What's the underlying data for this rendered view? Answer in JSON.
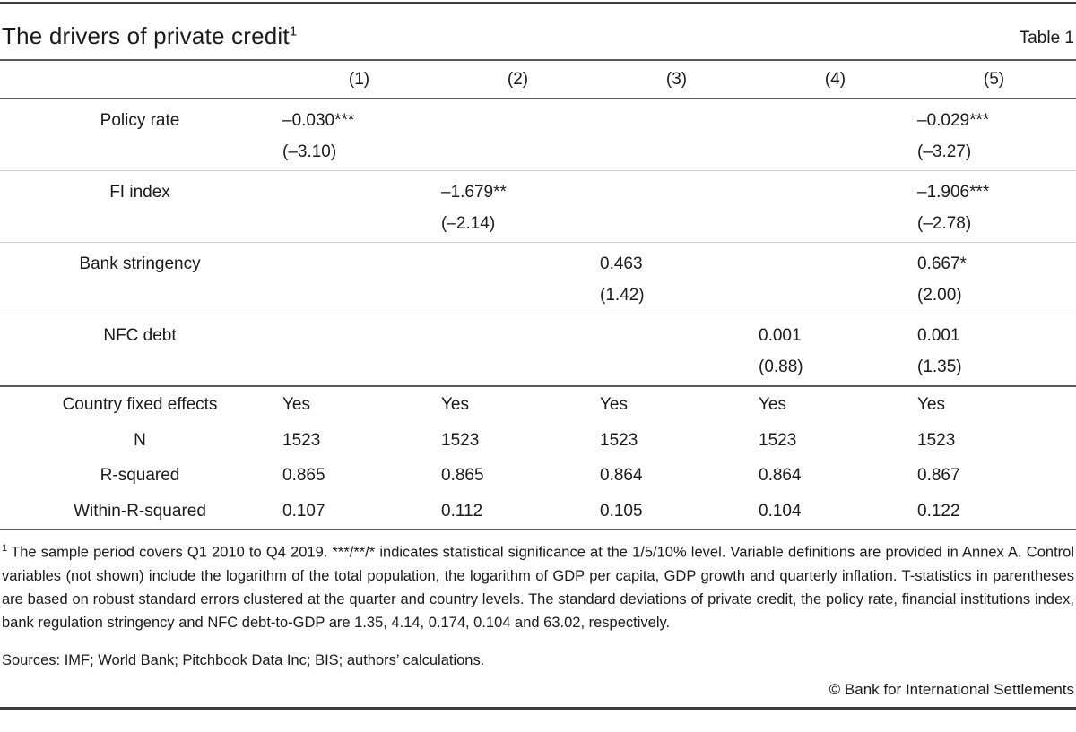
{
  "table": {
    "title": "The drivers of private credit",
    "title_footnote_marker": "1",
    "table_label": "Table 1",
    "column_headers": [
      "(1)",
      "(2)",
      "(3)",
      "(4)",
      "(5)"
    ],
    "variables": [
      {
        "label": "Policy rate",
        "coefs": [
          "–0.030***",
          "",
          "",
          "",
          "–0.029***"
        ],
        "tstats": [
          "(–3.10)",
          "",
          "",
          "",
          "(–3.27)"
        ]
      },
      {
        "label": "FI index",
        "coefs": [
          "",
          "–1.679**",
          "",
          "",
          "–1.906***"
        ],
        "tstats": [
          "",
          "(–2.14)",
          "",
          "",
          "(–2.78)"
        ]
      },
      {
        "label": "Bank stringency",
        "coefs": [
          "",
          "",
          "0.463",
          "",
          "0.667*"
        ],
        "tstats": [
          "",
          "",
          "(1.42)",
          "",
          "(2.00)"
        ]
      },
      {
        "label": "NFC debt",
        "coefs": [
          "",
          "",
          "",
          "0.001",
          "0.001"
        ],
        "tstats": [
          "",
          "",
          "",
          "(0.88)",
          "(1.35)"
        ]
      }
    ],
    "summary_rows": [
      {
        "label": "Country fixed effects",
        "values": [
          "Yes",
          "Yes",
          "Yes",
          "Yes",
          "Yes"
        ]
      },
      {
        "label": "N",
        "values": [
          "1523",
          "1523",
          "1523",
          "1523",
          "1523"
        ]
      },
      {
        "label": "R-squared",
        "values": [
          "0.865",
          "0.865",
          "0.864",
          "0.864",
          "0.867"
        ]
      },
      {
        "label": "Within-R-squared",
        "values": [
          "0.107",
          "0.112",
          "0.105",
          "0.104",
          "0.122"
        ]
      }
    ]
  },
  "notes": {
    "footnote_marker": "1",
    "footnote_text": "The sample period covers Q1 2010 to Q4 2019. ***/**/* indicates statistical significance at the 1/5/10% level. Variable definitions are provided in Annex A. Control variables (not shown) include the logarithm of the total population, the logarithm of GDP per capita, GDP growth and quarterly inflation. T-statistics in parentheses are based on robust standard errors clustered at the quarter and country levels. The standard deviations of private credit, the policy rate, financial institutions index, bank regulation stringency and NFC debt-to-GDP are 1.35, 4.14, 0.174, 0.104 and 63.02, respectively.",
    "sources": "Sources: IMF; World Bank; Pitchbook Data Inc; BIS; authors’ calculations.",
    "copyright": "© Bank for International Settlements"
  }
}
